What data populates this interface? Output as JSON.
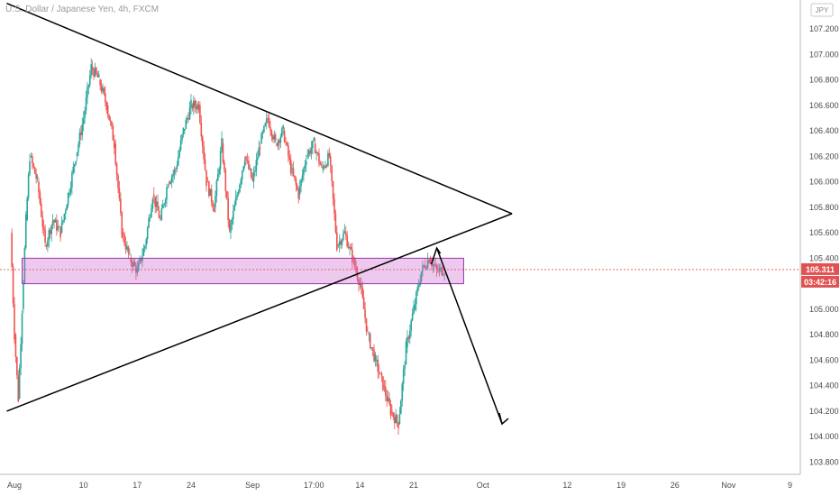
{
  "chart_data": {
    "type": "candlestick",
    "title": "U.S. Dollar / Japanese Yen, 4h, FXCM",
    "currency": "JPY",
    "price_tag": "105.311",
    "countdown_tag": "03:42:16",
    "ylim": [
      103.7,
      107.3
    ],
    "yticks": [
      "107.200",
      "107.000",
      "106.800",
      "106.600",
      "106.400",
      "106.200",
      "106.000",
      "105.800",
      "105.600",
      "105.400",
      "105.000",
      "104.800",
      "104.600",
      "104.400",
      "104.200",
      "104.000",
      "103.800"
    ],
    "ytick_values": [
      107.2,
      107.0,
      106.8,
      106.6,
      106.4,
      106.2,
      106.0,
      105.8,
      105.6,
      105.4,
      105.0,
      104.8,
      104.6,
      104.4,
      104.2,
      104.0,
      103.8
    ],
    "xticks": [
      "Aug",
      "10",
      "17",
      "24",
      "Sep",
      "17:00",
      "14",
      "21",
      "Oct",
      "12",
      "19",
      "26",
      "Nov",
      "9"
    ],
    "xtick_days": [
      0,
      9,
      16,
      23,
      31,
      39,
      45,
      52,
      61,
      72,
      79,
      86,
      93,
      101
    ],
    "last_price": 105.311,
    "candles_x_days": [
      -0.5,
      0,
      0.5,
      1,
      1.5,
      2,
      3,
      4,
      5,
      6,
      7,
      8,
      9,
      10,
      11,
      12,
      13,
      14,
      15,
      16,
      17,
      18,
      19,
      20,
      21,
      22,
      23,
      24,
      25,
      26,
      27,
      28,
      29,
      30,
      31,
      32,
      33,
      34,
      35,
      36,
      37,
      38,
      39,
      40,
      41,
      42,
      43,
      44,
      45,
      46,
      47,
      48,
      49,
      50,
      51,
      52,
      53,
      54,
      55,
      56
    ],
    "candles_close": [
      105.6,
      104.8,
      104.3,
      105.0,
      105.7,
      106.2,
      106.0,
      105.5,
      105.7,
      105.6,
      105.9,
      106.2,
      106.5,
      106.9,
      106.8,
      106.6,
      106.3,
      105.6,
      105.4,
      105.3,
      105.5,
      105.9,
      105.7,
      106.0,
      106.1,
      106.4,
      106.6,
      106.6,
      106.0,
      105.8,
      106.3,
      105.6,
      105.9,
      106.2,
      106.0,
      106.3,
      106.5,
      106.3,
      106.4,
      106.1,
      105.9,
      106.2,
      106.3,
      106.1,
      106.2,
      105.5,
      105.6,
      105.4,
      105.2,
      104.8,
      104.6,
      104.4,
      104.2,
      104.1,
      104.7,
      105.0,
      105.3,
      105.4,
      105.3,
      105.311
    ],
    "triangle_upper": {
      "start": [
        -1.0,
        107.4
      ],
      "end": [
        64.8,
        105.75
      ]
    },
    "triangle_lower": {
      "start": [
        -1.0,
        104.2
      ],
      "end": [
        64.8,
        105.75
      ]
    },
    "zone": {
      "low": 105.2,
      "high": 105.4,
      "start_day": 1.0,
      "end_day": 58.5
    },
    "projection": [
      [
        55.0,
        105.48
      ],
      [
        63.5,
        104.1
      ]
    ],
    "grid": false
  }
}
